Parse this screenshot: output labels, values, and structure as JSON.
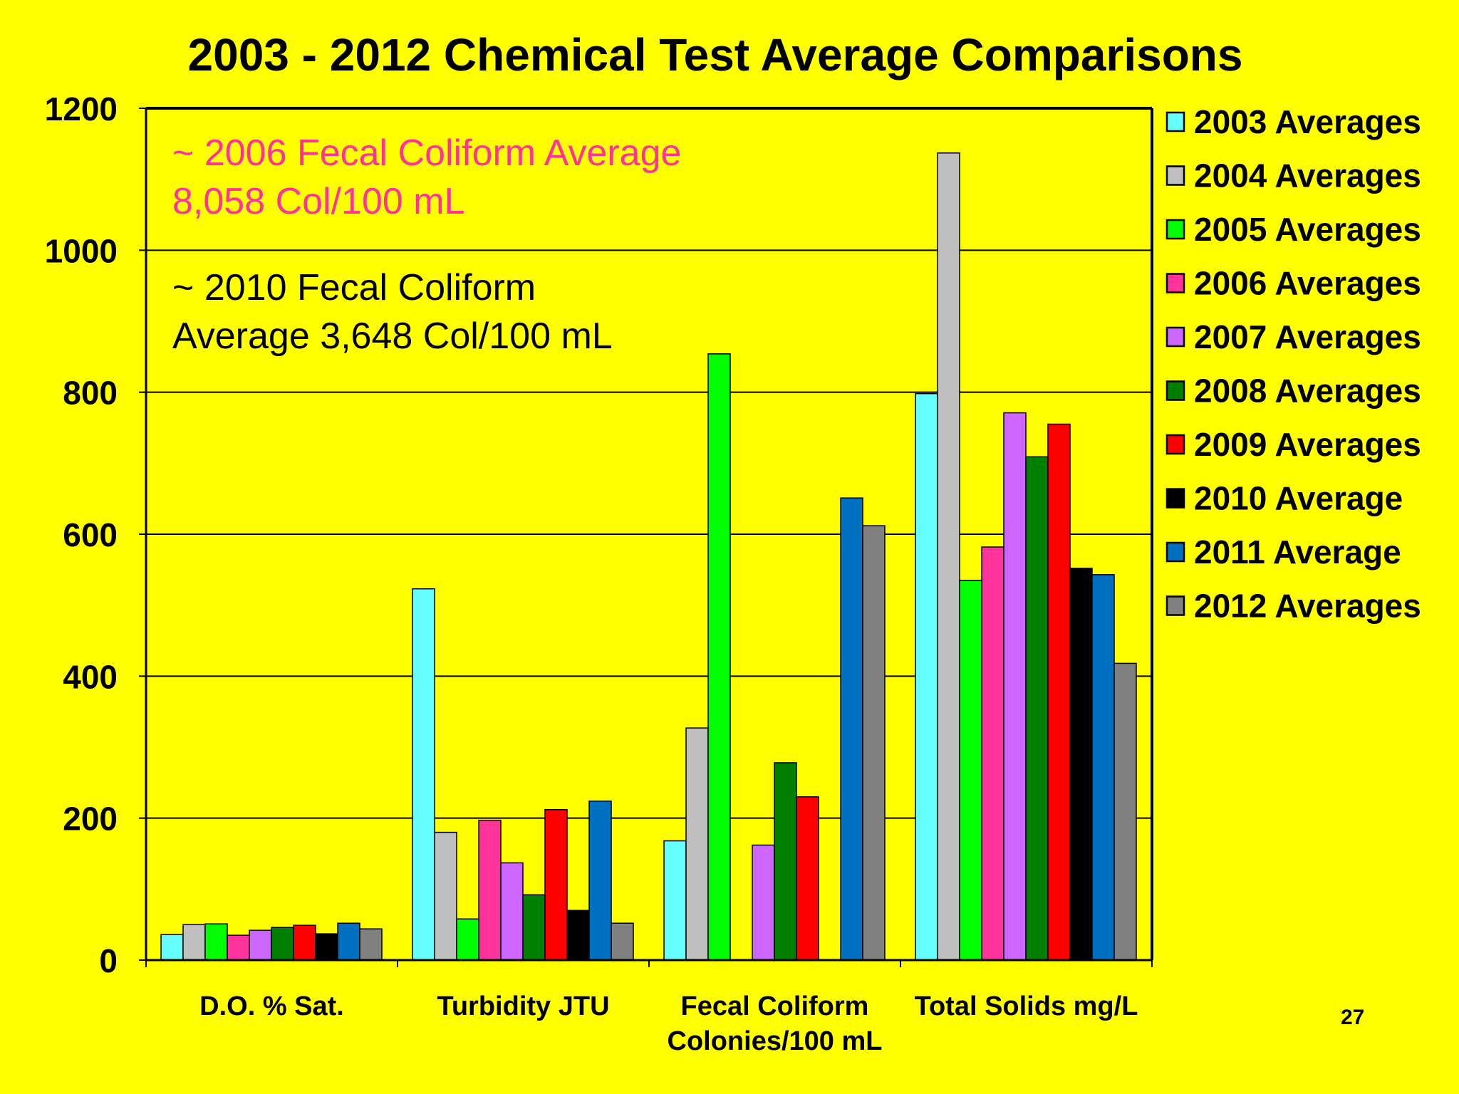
{
  "page": {
    "number": "27"
  },
  "chart_data": {
    "type": "bar",
    "title": "2003 - 2012 Chemical Test Average Comparisons",
    "xlabel": "",
    "ylabel": "",
    "ylim": [
      0,
      1200
    ],
    "yticks": [
      "0",
      "200",
      "400",
      "600",
      "800",
      "1000",
      "1200"
    ],
    "grid": true,
    "legend_position": "right",
    "categories": [
      "D.O. % Sat.",
      "Turbidity JTU",
      "Fecal Coliform\nColonies/100 mL",
      "Total Solids mg/L"
    ],
    "series": [
      {
        "name": "2003 Averages",
        "color": "#66ffff",
        "values": [
          36,
          523,
          168,
          798
        ]
      },
      {
        "name": "2004 Averages",
        "color": "#c0c0c0",
        "values": [
          50,
          180,
          327,
          1137
        ]
      },
      {
        "name": "2005 Averages",
        "color": "#00ff00",
        "values": [
          51,
          58,
          854,
          535
        ]
      },
      {
        "name": "2006 Averages",
        "color": "#ff3399",
        "values": [
          35,
          197,
          null,
          582
        ]
      },
      {
        "name": "2007 Averages",
        "color": "#cc66ff",
        "values": [
          42,
          137,
          162,
          771
        ]
      },
      {
        "name": "2008 Averages",
        "color": "#008000",
        "values": [
          46,
          92,
          278,
          709
        ]
      },
      {
        "name": "2009 Averages",
        "color": "#ff0000",
        "values": [
          49,
          212,
          230,
          755
        ]
      },
      {
        "name": "2010 Average",
        "color": "#000000",
        "values": [
          37,
          70,
          null,
          552
        ]
      },
      {
        "name": "2011 Average",
        "color": "#0070c0",
        "values": [
          52,
          224,
          651,
          543
        ]
      },
      {
        "name": "2012 Averages",
        "color": "#808080",
        "values": [
          44,
          52,
          612,
          418
        ]
      }
    ],
    "annotations": [
      {
        "lines": [
          "~ 2006 Fecal Coliform Average",
          "8,058 Col/100 mL"
        ],
        "color": "#ff3399"
      },
      {
        "lines": [
          "~ 2010 Fecal Coliform",
          "Average 3,648 Col/100 mL"
        ],
        "color": "#000000"
      }
    ]
  }
}
